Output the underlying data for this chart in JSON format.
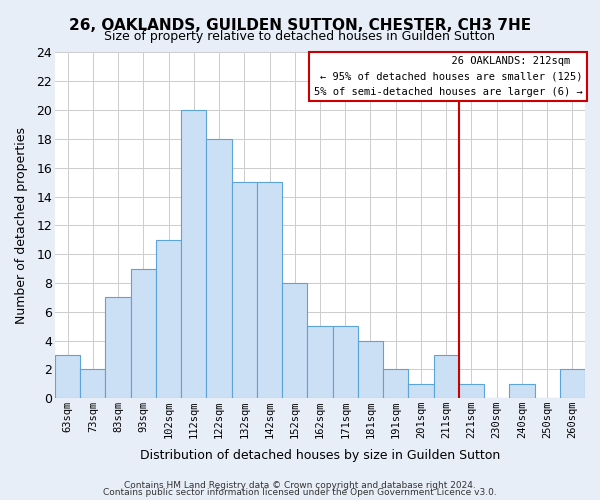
{
  "title": "26, OAKLANDS, GUILDEN SUTTON, CHESTER, CH3 7HE",
  "subtitle": "Size of property relative to detached houses in Guilden Sutton",
  "xlabel": "Distribution of detached houses by size in Guilden Sutton",
  "ylabel": "Number of detached properties",
  "bar_labels": [
    "63sqm",
    "73sqm",
    "83sqm",
    "93sqm",
    "102sqm",
    "112sqm",
    "122sqm",
    "132sqm",
    "142sqm",
    "152sqm",
    "162sqm",
    "171sqm",
    "181sqm",
    "191sqm",
    "201sqm",
    "211sqm",
    "221sqm",
    "230sqm",
    "240sqm",
    "250sqm",
    "260sqm"
  ],
  "bar_values": [
    3,
    2,
    7,
    9,
    11,
    20,
    18,
    15,
    15,
    8,
    5,
    5,
    4,
    2,
    1,
    3,
    1,
    0,
    1,
    0,
    2
  ],
  "bar_color": "#cce0f5",
  "bar_edge_color": "#5ba3d9",
  "vline_x": 15.5,
  "vline_color": "#cc0000",
  "ylim": [
    0,
    24
  ],
  "yticks": [
    0,
    2,
    4,
    6,
    8,
    10,
    12,
    14,
    16,
    18,
    20,
    22,
    24
  ],
  "annotation_title": "26 OAKLANDS: 212sqm",
  "annotation_line1": "← 95% of detached houses are smaller (125)",
  "annotation_line2": "5% of semi-detached houses are larger (6) →",
  "annotation_box_color": "#ffffff",
  "annotation_box_edge": "#cc0000",
  "footer_line1": "Contains HM Land Registry data © Crown copyright and database right 2024.",
  "footer_line2": "Contains public sector information licensed under the Open Government Licence v3.0.",
  "fig_bg_color": "#e8eef8",
  "plot_bg_color": "#ffffff",
  "grid_color": "#cccccc",
  "title_fontsize": 11,
  "subtitle_fontsize": 9
}
